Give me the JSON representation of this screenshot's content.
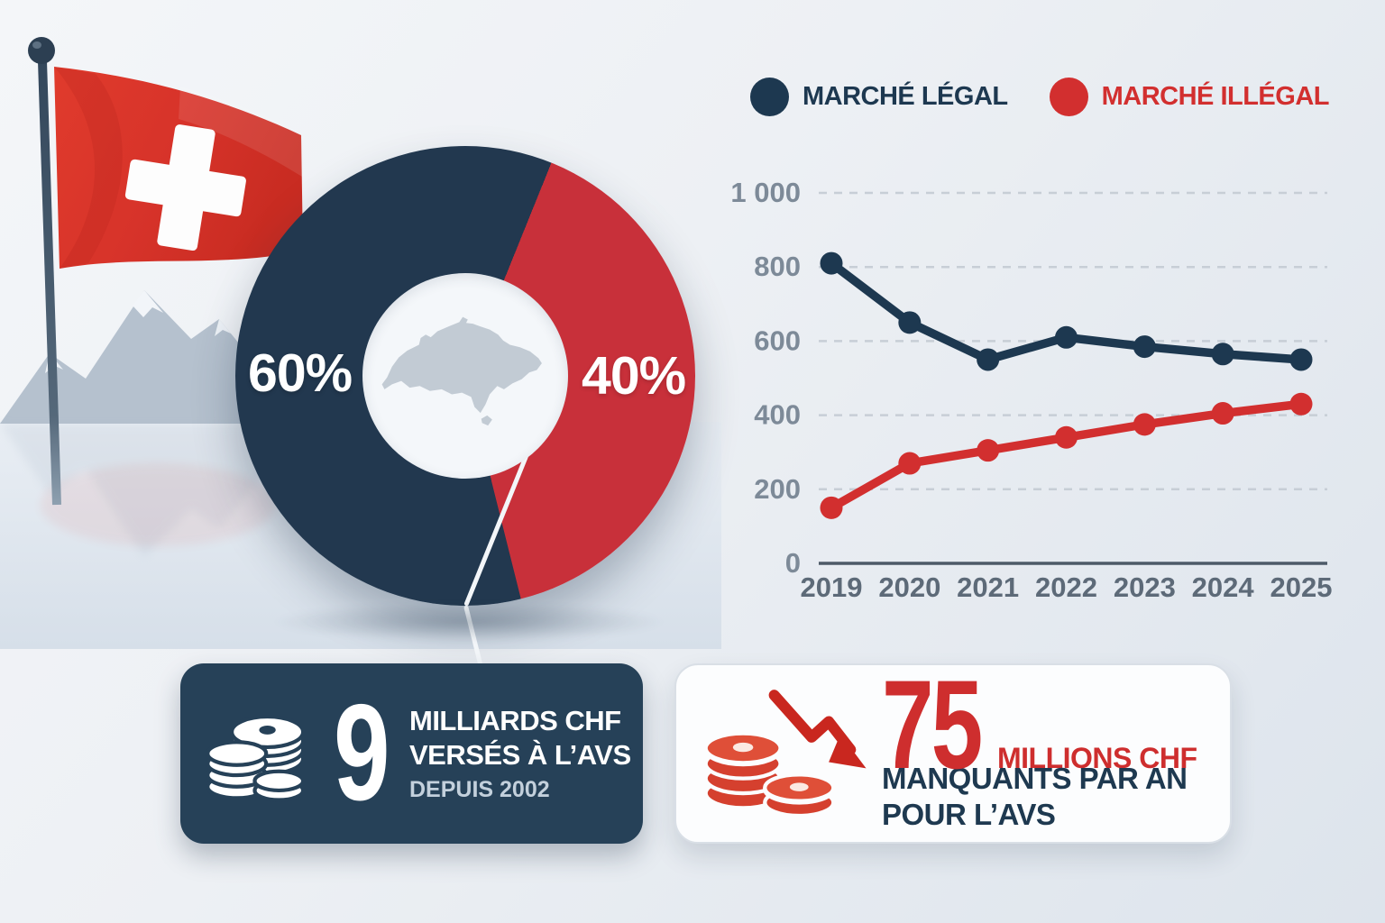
{
  "donut": {
    "legal_label": "60%",
    "illegal_label": "40%",
    "legal_color": "#22384f",
    "illegal_color": "#c8303a",
    "center_icon": "switzerland-map"
  },
  "legend": {
    "items": [
      {
        "label": "MARCHÉ LÉGAL",
        "color": "#1d3850"
      },
      {
        "label": "MARCHÉ ILLÉGAL",
        "color": "#d22f2f"
      }
    ]
  },
  "chart_data": [
    {
      "type": "pie",
      "donut": true,
      "labels": [
        "Marché légal",
        "Marché illégal"
      ],
      "values": [
        60,
        40
      ],
      "unit": "%",
      "colors": [
        "#22384f",
        "#c8303a"
      ],
      "start_angle_deg": 22,
      "center_icon": "switzerland-map"
    },
    {
      "type": "line",
      "x": [
        2019,
        2020,
        2021,
        2022,
        2023,
        2024,
        2025
      ],
      "series": [
        {
          "name": "MARCHÉ LÉGAL",
          "color": "#1d3850",
          "values": [
            810,
            650,
            550,
            610,
            585,
            565,
            550
          ]
        },
        {
          "name": "MARCHÉ ILLÉGAL",
          "color": "#d22f2f",
          "values": [
            150,
            270,
            305,
            340,
            375,
            405,
            430
          ]
        }
      ],
      "ylim": [
        0,
        1000
      ],
      "yticks": [
        0,
        200,
        400,
        600,
        800,
        1000
      ],
      "ytick_labels": [
        "0",
        "200",
        "400",
        "600",
        "800",
        "1 000"
      ],
      "grid": "horizontal-dashed",
      "legend_position": "top"
    }
  ],
  "stat_cards": [
    {
      "theme": "dark",
      "icon": "coins-icon",
      "value": "9",
      "line1": "MILLIARDS CHF",
      "line2": "VERSÉS À L’AVS",
      "line3": "DEPUIS 2002"
    },
    {
      "theme": "light",
      "icon": "coins-decline-icon",
      "value": "75",
      "value_suffix": "MILLIONS CHF",
      "line1": "MANQUANTS PAR AN",
      "line2": "POUR L’AVS"
    }
  ],
  "style_colors": {
    "axis_label": "#7d8a98",
    "x_label": "#5d6a78",
    "gridline": "#c7ced6",
    "axis_line": "#4d5a68",
    "card_dark_bg": "#264158",
    "flag_red": "#dc3a2c"
  }
}
